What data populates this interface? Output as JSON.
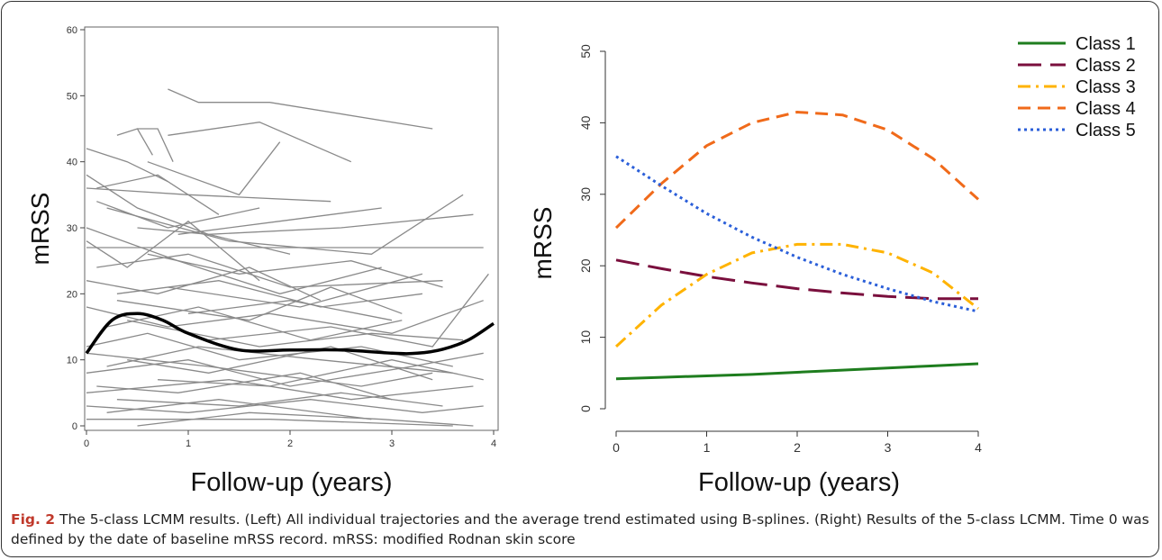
{
  "chart_data": [
    {
      "type": "line",
      "xlabel": "Follow-up (years)",
      "ylabel": "mRSS",
      "xlim": [
        0,
        4
      ],
      "ylim": [
        0,
        60
      ],
      "xticks": [
        0,
        1,
        2,
        3,
        4
      ],
      "yticks": [
        0,
        10,
        20,
        30,
        40,
        50,
        60
      ],
      "grid": false,
      "individual_color": "#8a8a8a",
      "mean_color": "#000000",
      "mean_trend": {
        "x": [
          0,
          0.25,
          0.5,
          0.75,
          1.0,
          1.5,
          2.0,
          2.5,
          3.0,
          3.25,
          3.5,
          3.75,
          4.0
        ],
        "y": [
          11,
          16,
          17,
          16,
          14,
          11.5,
          11.5,
          11.5,
          11,
          11,
          11.6,
          13,
          15.5
        ]
      },
      "individual_trajectories": [
        {
          "x": [
            0.8,
            1.1,
            1.8,
            3.4
          ],
          "y": [
            51,
            49,
            49,
            45
          ]
        },
        {
          "x": [
            0.5,
            0.7,
            0.85
          ],
          "y": [
            45,
            45,
            40
          ]
        },
        {
          "x": [
            0.3,
            0.5,
            0.65
          ],
          "y": [
            44,
            45,
            41
          ]
        },
        {
          "x": [
            0,
            0.4,
            0.8
          ],
          "y": [
            42,
            40,
            37
          ]
        },
        {
          "x": [
            0.8,
            1.7,
            2.6
          ],
          "y": [
            44,
            46,
            40
          ]
        },
        {
          "x": [
            0.1,
            0.7,
            1.3
          ],
          "y": [
            36,
            38,
            32
          ]
        },
        {
          "x": [
            0.6,
            1.5,
            1.9
          ],
          "y": [
            40,
            35,
            43
          ]
        },
        {
          "x": [
            0,
            1.0,
            2.4
          ],
          "y": [
            36,
            35,
            34
          ]
        },
        {
          "x": [
            0.5,
            1.2,
            2.5,
            3.8
          ],
          "y": [
            30,
            29,
            30,
            32
          ]
        },
        {
          "x": [
            0,
            1.6,
            3.2,
            3.9
          ],
          "y": [
            27,
            27,
            27,
            27
          ]
        },
        {
          "x": [
            0.2,
            1.4,
            2.8,
            3.7
          ],
          "y": [
            33,
            28,
            26,
            35
          ]
        },
        {
          "x": [
            0,
            0.9,
            1.9,
            2.9
          ],
          "y": [
            30,
            25,
            20,
            24
          ]
        },
        {
          "x": [
            0.1,
            1.0,
            2.0,
            3.5
          ],
          "y": [
            24,
            26,
            21,
            22
          ]
        },
        {
          "x": [
            0.3,
            1.3,
            2.3,
            3.3
          ],
          "y": [
            20,
            22,
            18,
            20
          ]
        },
        {
          "x": [
            0,
            0.8,
            1.8,
            3.0,
            3.9
          ],
          "y": [
            18,
            15,
            17,
            14,
            19
          ]
        },
        {
          "x": [
            0.2,
            1.1,
            2.2,
            3.1
          ],
          "y": [
            15,
            18,
            13,
            16
          ]
        },
        {
          "x": [
            0,
            0.6,
            1.5,
            2.7,
            3.6
          ],
          "y": [
            12,
            14,
            10,
            12,
            9
          ]
        },
        {
          "x": [
            0.4,
            1.2,
            2.4,
            3.4
          ],
          "y": [
            10,
            8,
            12,
            7
          ]
        },
        {
          "x": [
            0,
            1.0,
            2.0,
            3.2,
            3.9
          ],
          "y": [
            8,
            10,
            6,
            9,
            11
          ]
        },
        {
          "x": [
            0.1,
            0.9,
            2.1,
            3.0
          ],
          "y": [
            6,
            5,
            8,
            4
          ]
        },
        {
          "x": [
            0,
            1.4,
            2.6,
            3.8
          ],
          "y": [
            5,
            7,
            4,
            6
          ]
        },
        {
          "x": [
            0.3,
            1.5,
            2.5,
            3.5
          ],
          "y": [
            4,
            3,
            5,
            3
          ]
        },
        {
          "x": [
            0,
            1.0,
            2.2,
            3.3,
            3.9
          ],
          "y": [
            3,
            2,
            4,
            2,
            3
          ]
        },
        {
          "x": [
            0.2,
            1.3,
            2.8
          ],
          "y": [
            2,
            4,
            1
          ]
        },
        {
          "x": [
            0,
            1.8,
            3.6
          ],
          "y": [
            1,
            1,
            0
          ]
        },
        {
          "x": [
            0.5,
            1.6,
            2.9,
            3.8
          ],
          "y": [
            0,
            2,
            1,
            0
          ]
        },
        {
          "x": [
            0,
            0.7,
            1.6,
            2.3
          ],
          "y": [
            22,
            20,
            24,
            19
          ]
        },
        {
          "x": [
            0.6,
            1.5,
            2.6,
            3.5
          ],
          "y": [
            26,
            23,
            25,
            21
          ]
        },
        {
          "x": [
            0.1,
            0.8,
            1.7
          ],
          "y": [
            34,
            30,
            33
          ]
        },
        {
          "x": [
            0.9,
            1.9,
            2.9
          ],
          "y": [
            29,
            31,
            33
          ]
        },
        {
          "x": [
            0,
            0.5,
            1.2,
            2.0
          ],
          "y": [
            38,
            33,
            29,
            26
          ]
        },
        {
          "x": [
            1.0,
            2.0,
            3.0
          ],
          "y": [
            17,
            19,
            16
          ]
        },
        {
          "x": [
            1.2,
            2.4,
            3.4,
            3.95
          ],
          "y": [
            13,
            15,
            12,
            23
          ]
        },
        {
          "x": [
            0.4,
            1.7,
            2.8,
            3.7
          ],
          "y": [
            16,
            12,
            14,
            13
          ]
        },
        {
          "x": [
            0.2,
            1.1,
            2.3,
            3.6
          ],
          "y": [
            9,
            12,
            10,
            8
          ]
        },
        {
          "x": [
            0.7,
            1.8,
            3.0,
            3.9
          ],
          "y": [
            7,
            6,
            10,
            7
          ]
        },
        {
          "x": [
            0,
            1.2,
            2.7,
            3.4
          ],
          "y": [
            11,
            9,
            6,
            8
          ]
        },
        {
          "x": [
            0.3,
            1.6,
            2.4,
            3.1
          ],
          "y": [
            19,
            16,
            21,
            17
          ]
        },
        {
          "x": [
            0,
            0.4,
            1.0,
            1.7
          ],
          "y": [
            28,
            24,
            31,
            22
          ]
        },
        {
          "x": [
            0.8,
            2.1,
            3.3
          ],
          "y": [
            21,
            18,
            23
          ]
        }
      ]
    },
    {
      "type": "line",
      "xlabel": "Follow-up (years)",
      "ylabel": "mRSS",
      "xlim": [
        0,
        4
      ],
      "ylim": [
        0,
        55
      ],
      "xticks": [
        0,
        1,
        2,
        3,
        4
      ],
      "yticks": [
        0,
        10,
        20,
        30,
        40,
        50
      ],
      "grid": false,
      "legend": "top-right",
      "x": [
        0,
        0.5,
        1,
        1.5,
        2,
        2.5,
        3,
        3.5,
        4
      ],
      "series": [
        {
          "name": "Class 1",
          "color": "#1e7d1e",
          "dash": "solid",
          "values": [
            4.2,
            4.4,
            4.6,
            4.8,
            5.1,
            5.4,
            5.7,
            6.0,
            6.3
          ]
        },
        {
          "name": "Class 2",
          "color": "#7a0f3d",
          "dash": "long-dash",
          "values": [
            20.8,
            19.6,
            18.5,
            17.6,
            16.8,
            16.2,
            15.7,
            15.4,
            15.4
          ]
        },
        {
          "name": "Class 3",
          "color": "#ffb300",
          "dash": "dash-dot",
          "values": [
            8.7,
            14.5,
            18.8,
            21.8,
            23.0,
            23.0,
            21.8,
            19.0,
            14.0
          ]
        },
        {
          "name": "Class 4",
          "color": "#f06a1a",
          "dash": "dash",
          "values": [
            25.3,
            31.5,
            36.8,
            40.0,
            41.5,
            41.1,
            39.0,
            35.0,
            29.3
          ]
        },
        {
          "name": "Class 5",
          "color": "#2b5fd9",
          "dash": "dotted",
          "values": [
            35.3,
            31.2,
            27.3,
            24.0,
            21.2,
            18.8,
            16.8,
            15.0,
            13.6
          ]
        }
      ]
    }
  ],
  "caption": {
    "label": "Fig. 2",
    "text": " The 5-class LCMM results. (Left) All individual trajectories and the average trend estimated using B-splines. (Right) Results of the 5-class LCMM. Time 0 was defined by the date of baseline mRSS record. mRSS: modified Rodnan skin score"
  }
}
